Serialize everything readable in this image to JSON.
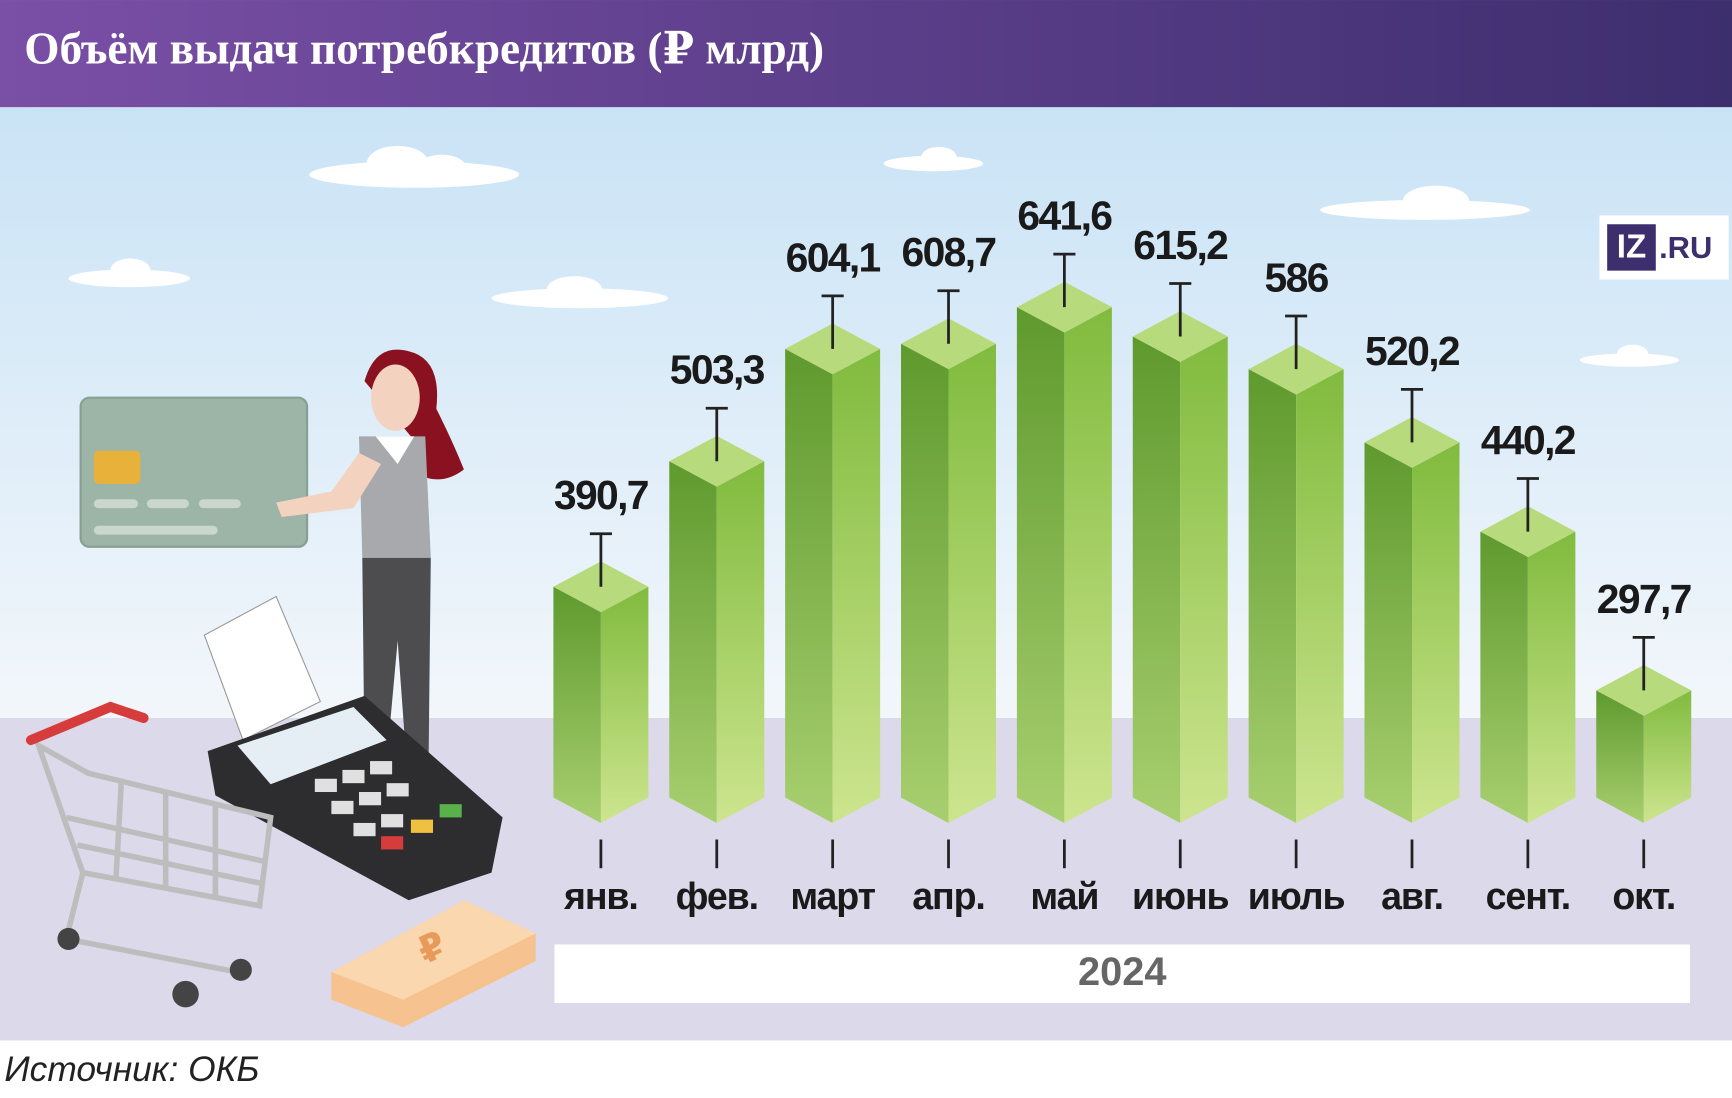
{
  "chart_data": {
    "type": "bar",
    "title": "Объём выдач потребкредитов (₽ млрд)",
    "categories": [
      "янв.",
      "фев.",
      "март",
      "апр.",
      "май",
      "июнь",
      "июль",
      "авг.",
      "сент.",
      "окт."
    ],
    "values": [
      390.7,
      503.3,
      604.1,
      608.7,
      641.6,
      615.2,
      586,
      520.2,
      440.2,
      297.7
    ],
    "value_labels": [
      "390,7",
      "503,3",
      "604,1",
      "608,7",
      "641,6",
      "615,2",
      "586",
      "520,2",
      "440,2",
      "297,7"
    ],
    "group_label": "2024",
    "colors": {
      "left": "#5f9a2e",
      "right": "#80bb3e",
      "top": "#b7da7c"
    },
    "source": "Источник: ОКБ",
    "logo": {
      "mark": "IZ",
      "domain": ".RU"
    }
  }
}
